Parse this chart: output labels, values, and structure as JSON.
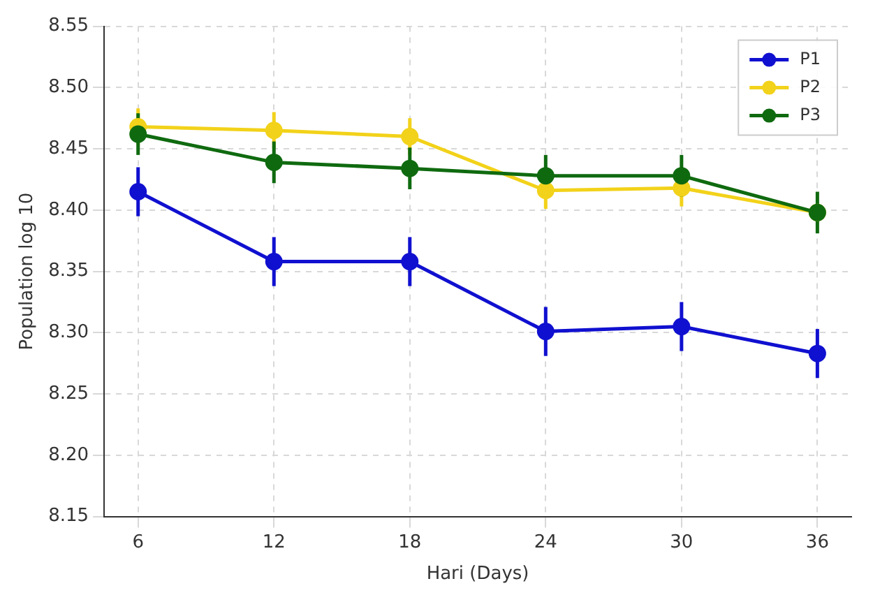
{
  "chart_data": {
    "type": "line",
    "xlabel": "Hari (Days)",
    "ylabel": "Population log 10",
    "x": [
      6,
      12,
      18,
      24,
      30,
      36
    ],
    "series": [
      {
        "name": "P1",
        "color": "#1010d0",
        "values": [
          8.415,
          8.358,
          8.358,
          8.301,
          8.305,
          8.283
        ],
        "errors": [
          0.02,
          0.02,
          0.02,
          0.02,
          0.02,
          0.02
        ]
      },
      {
        "name": "P2",
        "color": "#f2d21a",
        "values": [
          8.468,
          8.465,
          8.46,
          8.416,
          8.418,
          8.398
        ],
        "errors": [
          0.015,
          0.015,
          0.015,
          0.015,
          0.015,
          null
        ]
      },
      {
        "name": "P3",
        "color": "#0f6a0f",
        "values": [
          8.462,
          8.439,
          8.434,
          8.428,
          8.428,
          8.398
        ],
        "errors": [
          0.017,
          0.017,
          0.017,
          0.017,
          0.017,
          0.017
        ]
      }
    ],
    "xlim": [
      4.5,
      37.5
    ],
    "xticks": [
      6,
      12,
      18,
      24,
      30,
      36
    ],
    "ylim": [
      8.15,
      8.55
    ],
    "yticks": [
      8.15,
      {
        "value": 8.2,
        "label": "8.20"
      },
      8.25,
      {
        "value": 8.3,
        "label": "8.30"
      },
      8.35,
      {
        "value": 8.4,
        "label": "8.40"
      },
      8.45,
      {
        "value": 8.5,
        "label": "8.50"
      },
      8.55
    ],
    "grid": true,
    "legend": "top right",
    "marker": "circle",
    "line_style": "solid"
  }
}
